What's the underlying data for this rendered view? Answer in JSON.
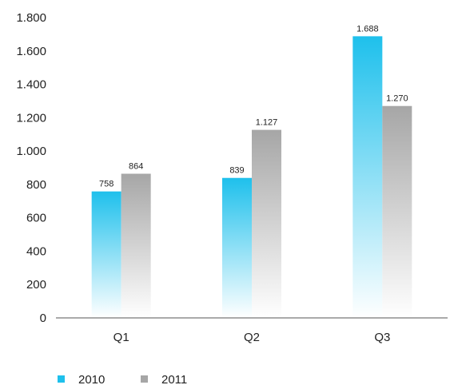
{
  "chart_data": {
    "type": "bar",
    "categories": [
      "Q1",
      "Q2",
      "Q3"
    ],
    "series": [
      {
        "name": "2010",
        "values": [
          758,
          839,
          1688
        ],
        "labels": [
          "758",
          "839",
          "1.688"
        ],
        "color": "#1ec0ec"
      },
      {
        "name": "2011",
        "values": [
          864,
          1127,
          1270
        ],
        "labels": [
          "864",
          "1.127",
          "1.270"
        ],
        "color": "#a6a6a6"
      }
    ],
    "ylim": [
      0,
      1800
    ],
    "yticks": [
      0,
      200,
      400,
      600,
      800,
      1000,
      1200,
      1400,
      1600,
      1800
    ],
    "ytick_labels": [
      "0",
      "200",
      "400",
      "600",
      "800",
      "1.000",
      "1.200",
      "1.400",
      "1.600",
      "1.800"
    ],
    "grid": false,
    "legend_position": "bottom-left",
    "title": "",
    "xlabel": "",
    "ylabel": ""
  }
}
